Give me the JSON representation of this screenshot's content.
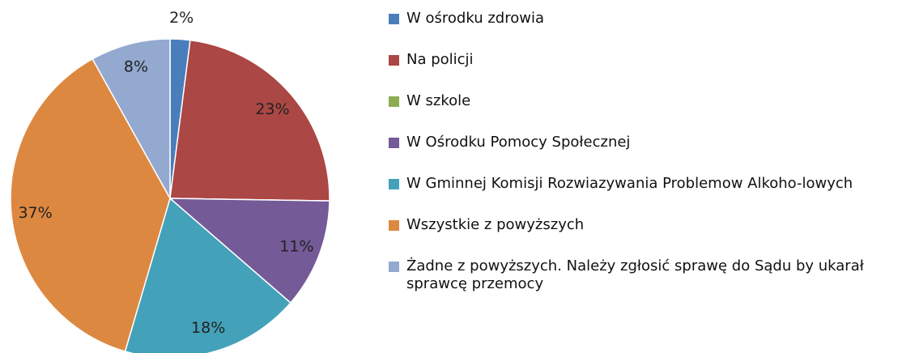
{
  "chart_data": {
    "type": "pie",
    "categories": [
      "W ośrodku zdrowia",
      "Na policji",
      "W szkole",
      "W Ośrodku Pomocy Społecznej",
      "W Gminnej Komisji Rozwiazywania Problemow Alkoho-lowych",
      "Wszystkie z powyższych",
      "Żadne z powyższych. Należy zgłosić sprawę do Sądu by ukarał sprawcę przemocy"
    ],
    "values": [
      2,
      23,
      0,
      11,
      18,
      37,
      8
    ],
    "value_labels": [
      "2%",
      "23%",
      null,
      "11%",
      "18%",
      "37%",
      "8%"
    ],
    "colors": [
      "#4a7ebb",
      "#ab4744",
      "#8cad52",
      "#745a97",
      "#43a1b9",
      "#dd8841",
      "#93a9cf"
    ]
  }
}
